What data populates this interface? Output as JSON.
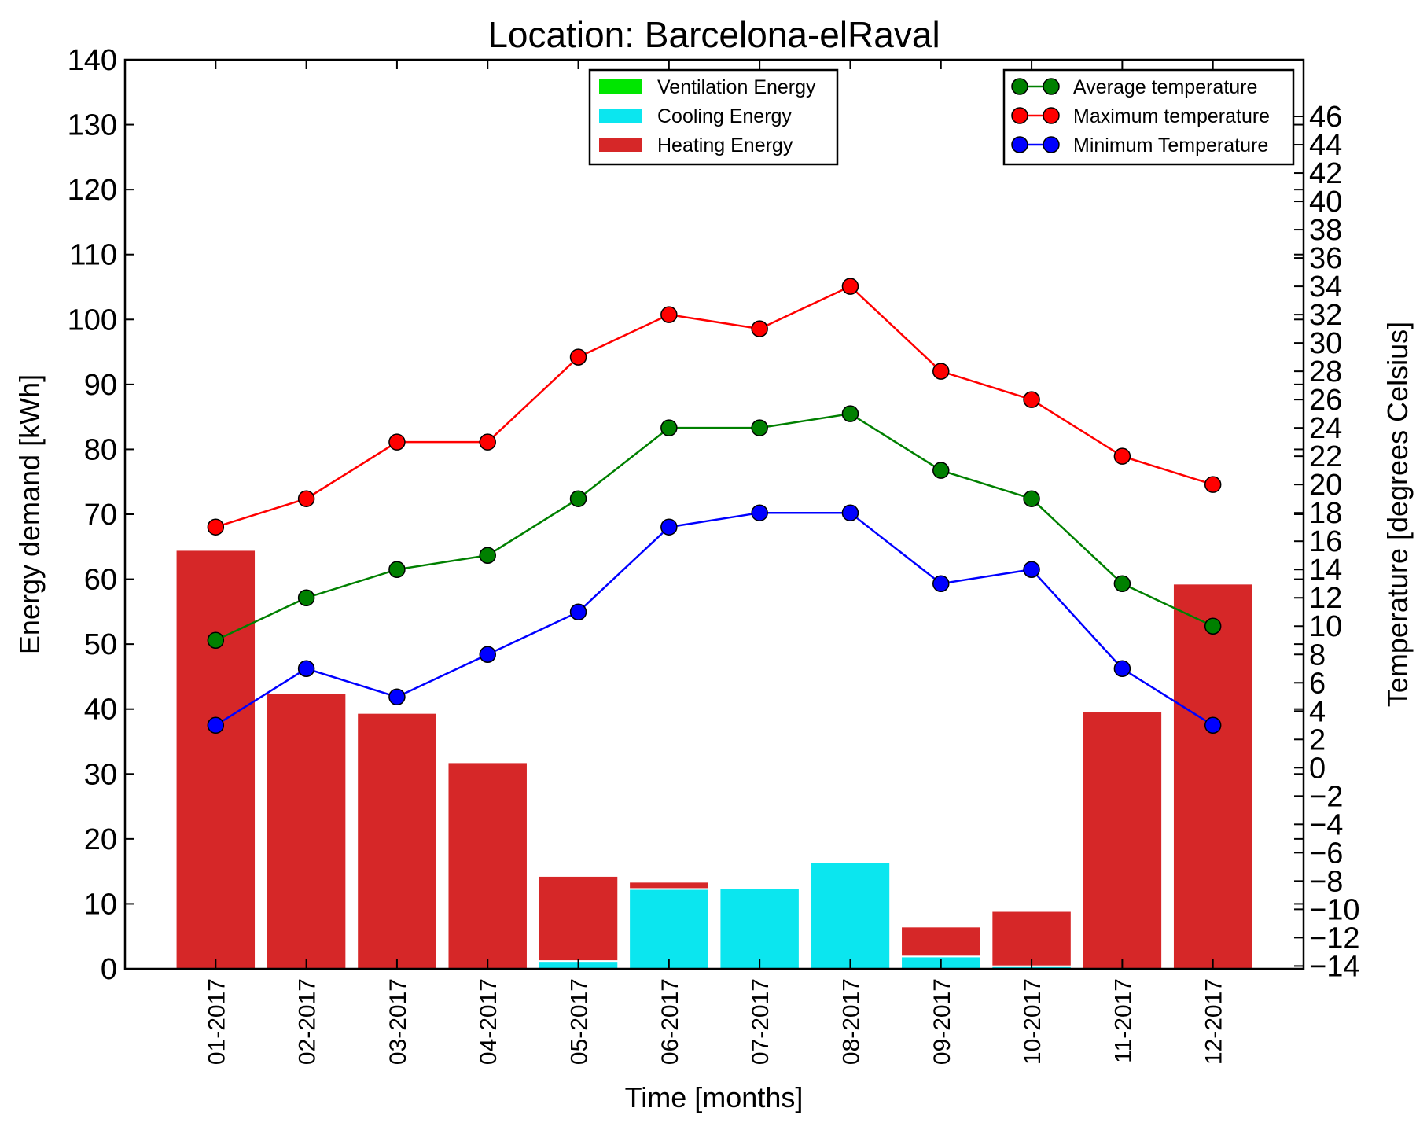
{
  "chart_data": {
    "type": "bar",
    "title": "Location: Barcelona-elRaval",
    "xlabel": "Time [months]",
    "ylabel": "Energy demand [kWh]",
    "y2label": "Temperature [degrees Celsius]",
    "categories": [
      "01-2017",
      "02-2017",
      "03-2017",
      "04-2017",
      "05-2017",
      "06-2017",
      "07-2017",
      "08-2017",
      "09-2017",
      "10-2017",
      "11-2017",
      "12-2017"
    ],
    "ylim": [
      0,
      140
    ],
    "yticks": [
      "0",
      "10",
      "20",
      "30",
      "40",
      "50",
      "60",
      "70",
      "80",
      "90",
      "100",
      "110",
      "120",
      "130",
      "140"
    ],
    "y2lim": [
      -14.2,
      50
    ],
    "y2ticks": [
      "−14",
      "−12",
      "−10",
      "−8",
      "−6",
      "−4",
      "−2",
      "0",
      "2",
      "4",
      "6",
      "8",
      "10",
      "12",
      "14",
      "16",
      "18",
      "20",
      "22",
      "24",
      "26",
      "28",
      "30",
      "32",
      "34",
      "36",
      "38",
      "40",
      "42",
      "44",
      "46"
    ],
    "stacked": true,
    "bar_series": [
      {
        "name": "Ventilation Energy",
        "color": "#00e600",
        "values": [
          0,
          0,
          0,
          0,
          0,
          0,
          0,
          0,
          0,
          0,
          0,
          0
        ]
      },
      {
        "name": "Cooling Energy",
        "color": "#0be6ef",
        "values": [
          0,
          0,
          0,
          0,
          1.2,
          12.3,
          12.4,
          16.4,
          1.9,
          0.4,
          0,
          0
        ]
      },
      {
        "name": "Heating Energy",
        "color": "#d62728",
        "values": [
          64.5,
          42.5,
          39.4,
          31.8,
          13.1,
          1.1,
          0,
          0,
          4.6,
          8.5,
          39.6,
          59.3
        ]
      }
    ],
    "line_series": [
      {
        "name": "Average temperature",
        "color": "#008000",
        "values": [
          9,
          12,
          14,
          15,
          19,
          24,
          24,
          25,
          21,
          19,
          13,
          10
        ]
      },
      {
        "name": "Maximum temperature",
        "color": "#ff0000",
        "values": [
          17,
          19,
          23,
          23,
          29,
          32,
          31,
          34,
          28,
          26,
          22,
          20
        ]
      },
      {
        "name": "Minimum Temperature",
        "color": "#0000ff",
        "values": [
          3,
          7,
          5,
          8,
          11,
          17,
          18,
          18,
          13,
          14,
          7,
          3
        ]
      }
    ],
    "grid": false,
    "legends": [
      "top-center (bars)",
      "top-right (lines)"
    ]
  }
}
